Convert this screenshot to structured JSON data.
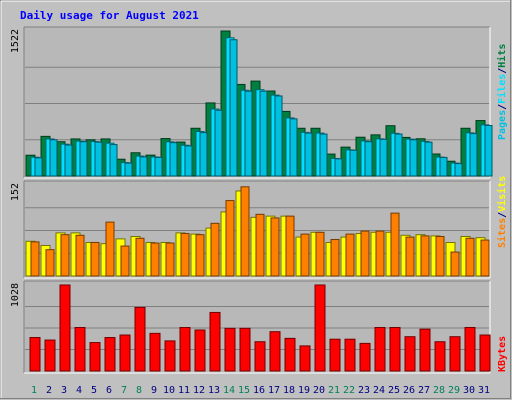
{
  "title": "Daily usage for August 2021",
  "colors": {
    "background": "#c0c0c0",
    "plot": "#b8b8b8",
    "grid": "#808080",
    "title": "#0000ff",
    "hits": "#008040",
    "files": "#00e0ff",
    "pages": "#00c0e0",
    "visits": "#ffff00",
    "sites": "#ff8000",
    "kbytes": "#ff0000",
    "weekday": "#000080",
    "weekend": "#00805a"
  },
  "right_labels": {
    "panel1": [
      "Pages",
      "/",
      "Files",
      "/",
      "Hits"
    ],
    "panel2": [
      "Sites",
      "/",
      "Visits"
    ],
    "panel3": [
      "KBytes"
    ]
  },
  "chart_data": [
    {
      "type": "bar",
      "title": "Daily usage for August 2021",
      "ymax_label": "1522",
      "ylim": [
        0,
        1522
      ],
      "categories": [
        "1",
        "2",
        "3",
        "4",
        "5",
        "6",
        "7",
        "8",
        "9",
        "10",
        "11",
        "12",
        "13",
        "14",
        "15",
        "16",
        "17",
        "18",
        "19",
        "20",
        "21",
        "22",
        "23",
        "24",
        "25",
        "26",
        "27",
        "28",
        "29",
        "30",
        "31"
      ],
      "weekend_days": [
        "1",
        "7",
        "8",
        "14",
        "15",
        "21",
        "22",
        "28",
        "29"
      ],
      "series": [
        {
          "name": "Hits",
          "values": [
            218,
            416,
            360,
            389,
            380,
            389,
            176,
            244,
            219,
            393,
            356,
            501,
            767,
            1522,
            961,
            996,
            892,
            678,
            501,
            501,
            230,
            303,
            407,
            432,
            528,
            405,
            391,
            231,
            155,
            501,
            582
          ]
        },
        {
          "name": "Files",
          "values": [
            197,
            389,
            334,
            366,
            361,
            344,
            141,
            209,
            200,
            359,
            323,
            467,
            703,
            1451,
            900,
            906,
            849,
            610,
            458,
            450,
            184,
            274,
            368,
            390,
            448,
            387,
            363,
            198,
            136,
            453,
            537
          ]
        },
        {
          "name": "Pages",
          "values": [
            190,
            380,
            325,
            360,
            355,
            330,
            135,
            200,
            195,
            350,
            315,
            455,
            690,
            1430,
            890,
            890,
            840,
            600,
            450,
            440,
            180,
            270,
            360,
            385,
            440,
            380,
            355,
            195,
            130,
            445,
            530
          ]
        }
      ]
    },
    {
      "type": "bar",
      "ymax_label": "152",
      "ylim": [
        0,
        152
      ],
      "categories": [
        "1",
        "2",
        "3",
        "4",
        "5",
        "6",
        "7",
        "8",
        "9",
        "10",
        "11",
        "12",
        "13",
        "14",
        "15",
        "16",
        "17",
        "18",
        "19",
        "20",
        "21",
        "22",
        "23",
        "24",
        "25",
        "26",
        "27",
        "28",
        "29",
        "30",
        "31"
      ],
      "series": [
        {
          "name": "Visits",
          "values": [
            58,
            51,
            72,
            72,
            56,
            54,
            62,
            66,
            56,
            56,
            72,
            70,
            80,
            107,
            142,
            98,
            100,
            100,
            65,
            73,
            56,
            65,
            71,
            73,
            73,
            68,
            69,
            67,
            56,
            66,
            64
          ]
        },
        {
          "name": "Sites",
          "values": [
            57,
            44,
            69,
            68,
            56,
            90,
            50,
            63,
            55,
            55,
            71,
            69,
            88,
            126,
            149,
            103,
            97,
            100,
            70,
            73,
            61,
            70,
            75,
            75,
            105,
            65,
            67,
            66,
            40,
            63,
            60
          ]
        }
      ]
    },
    {
      "type": "bar",
      "ymax_label": "1028",
      "ylim": [
        0,
        1028
      ],
      "categories": [
        "1",
        "2",
        "3",
        "4",
        "5",
        "6",
        "7",
        "8",
        "9",
        "10",
        "11",
        "12",
        "13",
        "14",
        "15",
        "16",
        "17",
        "18",
        "19",
        "20",
        "21",
        "22",
        "23",
        "24",
        "25",
        "26",
        "27",
        "28",
        "29",
        "30",
        "31"
      ],
      "series": [
        {
          "name": "KBytes",
          "values": [
            400,
            370,
            1028,
            520,
            340,
            400,
            430,
            760,
            450,
            360,
            520,
            490,
            700,
            510,
            510,
            350,
            470,
            390,
            300,
            1028,
            380,
            380,
            330,
            520,
            520,
            410,
            500,
            350,
            410,
            520,
            430
          ]
        }
      ]
    }
  ]
}
